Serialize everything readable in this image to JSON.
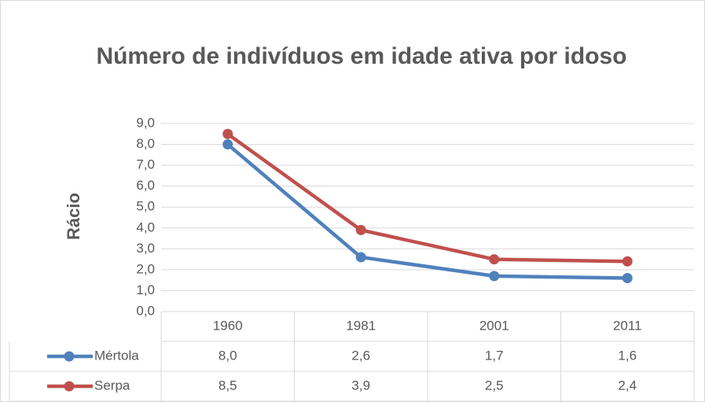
{
  "chart_data": {
    "type": "line",
    "title": "Número de indivíduos em idade ativa por idoso",
    "y_label": "Rácio",
    "categories": [
      "1960",
      "1981",
      "2001",
      "2011"
    ],
    "series": [
      {
        "name": "Mértola",
        "color": "#4f81bd",
        "values": [
          8.0,
          2.6,
          1.7,
          1.6
        ],
        "value_labels": [
          "8,0",
          "2,6",
          "1,7",
          "1,6"
        ]
      },
      {
        "name": "Serpa",
        "color": "#c0504d",
        "values": [
          8.5,
          3.9,
          2.5,
          2.4
        ],
        "value_labels": [
          "8,5",
          "3,9",
          "2,5",
          "2,4"
        ]
      }
    ],
    "ylim": [
      0,
      9
    ],
    "yticks": [
      {
        "value": 0,
        "label": "0,0"
      },
      {
        "value": 1,
        "label": "1,0"
      },
      {
        "value": 2,
        "label": "2,0"
      },
      {
        "value": 3,
        "label": "3,0"
      },
      {
        "value": 4,
        "label": "4,0"
      },
      {
        "value": 5,
        "label": "5,0"
      },
      {
        "value": 6,
        "label": "6,0"
      },
      {
        "value": 7,
        "label": "7,0"
      },
      {
        "value": 8,
        "label": "8,0"
      },
      {
        "value": 9,
        "label": "9,0"
      }
    ],
    "grid": true
  }
}
